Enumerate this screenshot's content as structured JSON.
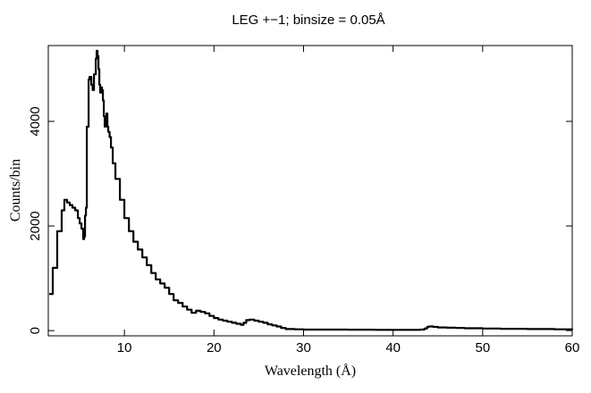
{
  "chart_data": {
    "type": "line",
    "title": "LEG +−1; binsize = 0.05Å",
    "xlabel": "Wavelength (Å)",
    "ylabel": "Counts/bin",
    "xlim": [
      1.5,
      60
    ],
    "ylim": [
      -100,
      5450
    ],
    "x_ticks": [
      10,
      20,
      30,
      40,
      50,
      60
    ],
    "x_tick_labels": [
      "10",
      "20",
      "30",
      "40",
      "50",
      "60"
    ],
    "y_ticks": [
      0,
      2000,
      4000
    ],
    "y_tick_labels": [
      "0",
      "2000",
      "4000"
    ],
    "grid": false,
    "legend": "none",
    "series": [
      {
        "color": "#000000",
        "x": [
          1.6,
          2.0,
          2.5,
          3.0,
          3.3,
          3.6,
          3.9,
          4.2,
          4.5,
          4.8,
          5.0,
          5.2,
          5.4,
          5.5,
          5.6,
          5.7,
          5.8,
          6.0,
          6.1,
          6.3,
          6.45,
          6.6,
          6.8,
          6.9,
          7.0,
          7.1,
          7.2,
          7.3,
          7.4,
          7.5,
          7.6,
          7.7,
          7.8,
          7.9,
          8.0,
          8.1,
          8.2,
          8.35,
          8.5,
          8.7,
          9.0,
          9.5,
          10.0,
          10.5,
          11.0,
          11.5,
          12.0,
          12.5,
          13.0,
          13.5,
          14.0,
          14.5,
          15.0,
          15.5,
          16.0,
          16.5,
          17.0,
          17.5,
          18.0,
          18.5,
          19.0,
          19.5,
          20.0,
          20.5,
          21.0,
          21.5,
          22.0,
          22.5,
          23.0,
          23.3,
          23.6,
          24.0,
          24.5,
          25.0,
          25.5,
          26.0,
          26.5,
          27.0,
          27.5,
          28.0,
          29.0,
          30.0,
          32.0,
          35.0,
          38.0,
          40.0,
          42.0,
          43.0,
          43.5,
          43.8,
          44.0,
          44.5,
          45.0,
          46.0,
          47.0,
          48.0,
          50.0,
          52.0,
          55.0,
          58.0,
          60.0
        ],
        "y": [
          700,
          1200,
          1900,
          2300,
          2500,
          2450,
          2400,
          2350,
          2300,
          2150,
          2050,
          1950,
          1750,
          1800,
          2200,
          2350,
          3900,
          4800,
          4850,
          4700,
          4600,
          4900,
          5200,
          5350,
          5250,
          5000,
          4700,
          4550,
          4650,
          4600,
          4400,
          4100,
          3900,
          4000,
          4150,
          3900,
          3800,
          3700,
          3500,
          3200,
          2900,
          2500,
          2150,
          1900,
          1700,
          1550,
          1400,
          1250,
          1100,
          980,
          900,
          820,
          700,
          580,
          530,
          460,
          400,
          340,
          380,
          360,
          330,
          280,
          240,
          210,
          190,
          170,
          150,
          130,
          110,
          150,
          200,
          210,
          190,
          170,
          150,
          120,
          100,
          80,
          50,
          30,
          25,
          20,
          20,
          18,
          15,
          15,
          15,
          20,
          40,
          70,
          80,
          70,
          60,
          55,
          50,
          45,
          40,
          35,
          30,
          25,
          20
        ]
      }
    ]
  }
}
